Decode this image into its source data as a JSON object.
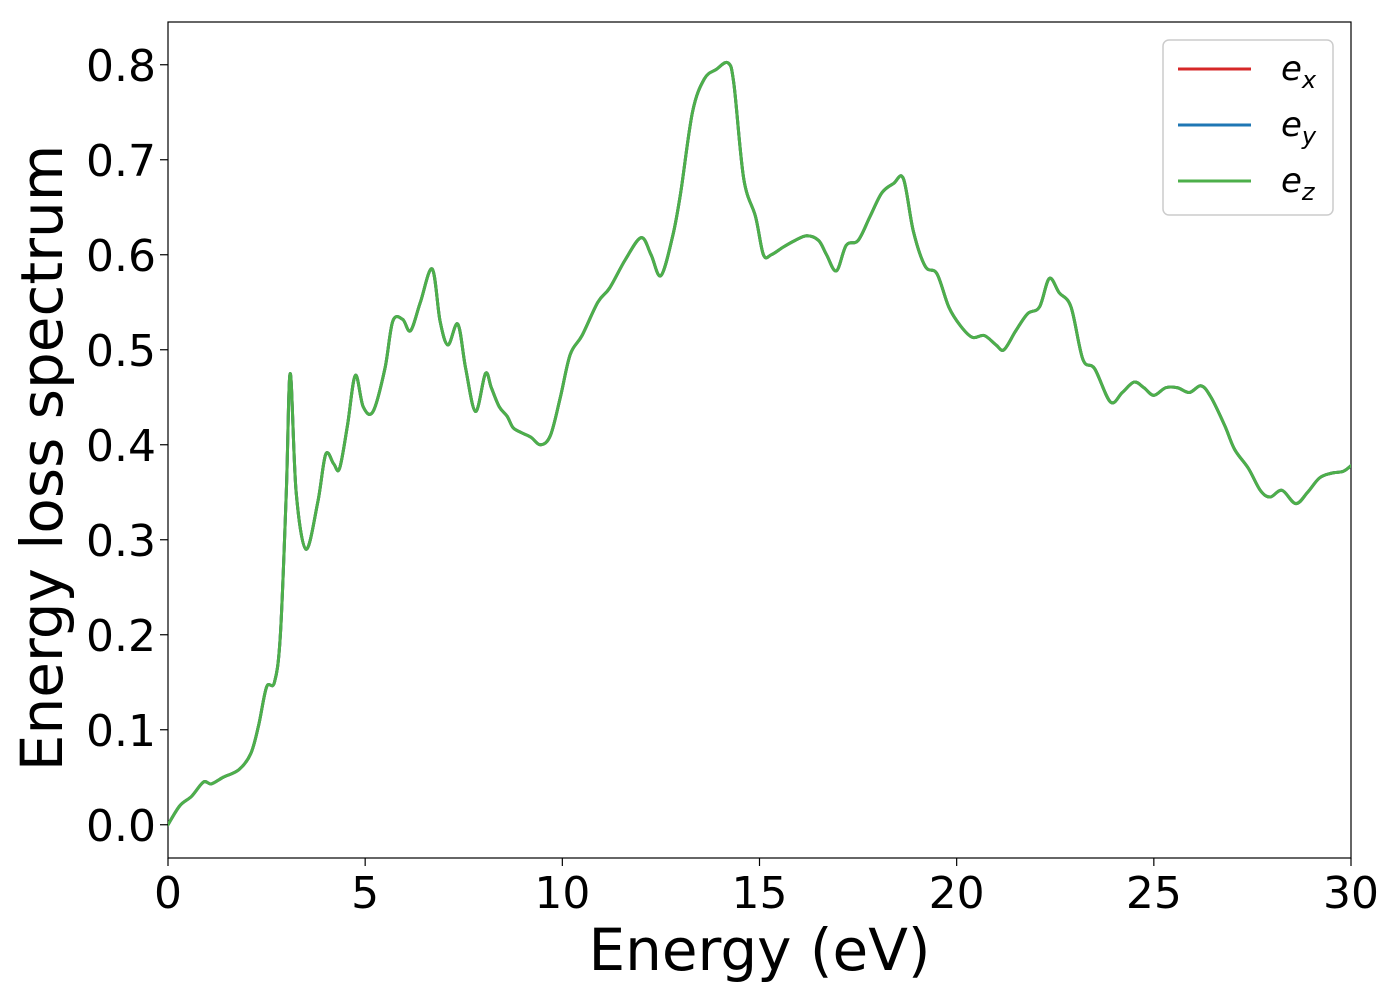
{
  "chart_data": {
    "type": "line",
    "xlabel": "Energy (eV)",
    "ylabel": "Energy loss spectrum",
    "xlim": [
      0,
      30
    ],
    "ylim": [
      -0.035,
      0.845
    ],
    "xticks": [
      0,
      5,
      10,
      15,
      20,
      25,
      30
    ],
    "xtick_labels": [
      "0",
      "5",
      "10",
      "15",
      "20",
      "25",
      "30"
    ],
    "yticks": [
      0.0,
      0.1,
      0.2,
      0.3,
      0.4,
      0.5,
      0.6,
      0.7,
      0.8
    ],
    "ytick_labels": [
      "0.0",
      "0.1",
      "0.2",
      "0.3",
      "0.4",
      "0.5",
      "0.6",
      "0.7",
      "0.8"
    ],
    "grid": false,
    "legend_position": "top-right",
    "x": [
      0,
      0.3,
      0.6,
      0.9,
      1.1,
      1.4,
      1.8,
      2.1,
      2.3,
      2.5,
      2.7,
      2.85,
      3.0,
      3.1,
      3.25,
      3.5,
      3.8,
      4.0,
      4.2,
      4.35,
      4.55,
      4.75,
      4.95,
      5.2,
      5.5,
      5.7,
      5.95,
      6.15,
      6.4,
      6.7,
      6.9,
      7.1,
      7.35,
      7.55,
      7.8,
      8.05,
      8.2,
      8.4,
      8.6,
      8.75,
      8.95,
      9.2,
      9.45,
      9.7,
      9.95,
      10.2,
      10.5,
      10.9,
      11.2,
      11.6,
      12.0,
      12.25,
      12.5,
      12.8,
      13.0,
      13.3,
      13.6,
      13.9,
      14.2,
      14.35,
      14.6,
      14.9,
      15.1,
      15.3,
      15.6,
      15.9,
      16.2,
      16.5,
      16.7,
      16.95,
      17.2,
      17.5,
      17.8,
      18.1,
      18.4,
      18.65,
      18.9,
      19.2,
      19.5,
      19.8,
      20.1,
      20.4,
      20.7,
      21.0,
      21.2,
      21.5,
      21.8,
      22.1,
      22.35,
      22.6,
      22.9,
      23.2,
      23.5,
      23.9,
      24.2,
      24.5,
      24.75,
      25.0,
      25.3,
      25.6,
      25.9,
      26.2,
      26.45,
      26.8,
      27.05,
      27.4,
      27.7,
      27.95,
      28.25,
      28.6,
      28.9,
      29.2,
      29.5,
      29.8,
      30.0
    ],
    "series": [
      {
        "name": "e_x",
        "color": "#d62728",
        "values": [
          0.0,
          0.02,
          0.03,
          0.045,
          0.043,
          0.05,
          0.058,
          0.075,
          0.105,
          0.145,
          0.15,
          0.2,
          0.35,
          0.475,
          0.35,
          0.29,
          0.34,
          0.39,
          0.38,
          0.375,
          0.42,
          0.473,
          0.44,
          0.435,
          0.48,
          0.53,
          0.532,
          0.52,
          0.55,
          0.585,
          0.53,
          0.505,
          0.527,
          0.48,
          0.435,
          0.475,
          0.46,
          0.44,
          0.43,
          0.418,
          0.413,
          0.408,
          0.4,
          0.41,
          0.45,
          0.495,
          0.515,
          0.55,
          0.565,
          0.595,
          0.618,
          0.6,
          0.578,
          0.62,
          0.665,
          0.75,
          0.785,
          0.795,
          0.802,
          0.78,
          0.68,
          0.64,
          0.6,
          0.6,
          0.608,
          0.615,
          0.62,
          0.615,
          0.6,
          0.583,
          0.61,
          0.615,
          0.64,
          0.665,
          0.675,
          0.68,
          0.625,
          0.588,
          0.58,
          0.545,
          0.525,
          0.513,
          0.515,
          0.505,
          0.5,
          0.52,
          0.538,
          0.545,
          0.575,
          0.56,
          0.545,
          0.49,
          0.48,
          0.445,
          0.455,
          0.466,
          0.46,
          0.452,
          0.46,
          0.46,
          0.455,
          0.462,
          0.45,
          0.42,
          0.395,
          0.375,
          0.352,
          0.345,
          0.352,
          0.338,
          0.35,
          0.365,
          0.37,
          0.372,
          0.378
        ]
      },
      {
        "name": "e_y",
        "color": "#1f77b4",
        "values": [
          0.0,
          0.02,
          0.03,
          0.045,
          0.043,
          0.05,
          0.058,
          0.075,
          0.105,
          0.145,
          0.15,
          0.2,
          0.35,
          0.475,
          0.35,
          0.29,
          0.34,
          0.39,
          0.38,
          0.375,
          0.42,
          0.473,
          0.44,
          0.435,
          0.48,
          0.53,
          0.532,
          0.52,
          0.55,
          0.585,
          0.53,
          0.505,
          0.527,
          0.48,
          0.435,
          0.475,
          0.46,
          0.44,
          0.43,
          0.418,
          0.413,
          0.408,
          0.4,
          0.41,
          0.45,
          0.495,
          0.515,
          0.55,
          0.565,
          0.595,
          0.618,
          0.6,
          0.578,
          0.62,
          0.665,
          0.75,
          0.785,
          0.795,
          0.802,
          0.78,
          0.68,
          0.64,
          0.6,
          0.6,
          0.608,
          0.615,
          0.62,
          0.615,
          0.6,
          0.583,
          0.61,
          0.615,
          0.64,
          0.665,
          0.675,
          0.68,
          0.625,
          0.588,
          0.58,
          0.545,
          0.525,
          0.513,
          0.515,
          0.505,
          0.5,
          0.52,
          0.538,
          0.545,
          0.575,
          0.56,
          0.545,
          0.49,
          0.48,
          0.445,
          0.455,
          0.466,
          0.46,
          0.452,
          0.46,
          0.46,
          0.455,
          0.462,
          0.45,
          0.42,
          0.395,
          0.375,
          0.352,
          0.345,
          0.352,
          0.338,
          0.35,
          0.365,
          0.37,
          0.372,
          0.378
        ]
      },
      {
        "name": "e_z",
        "color": "#4daf4a",
        "values": [
          0.0,
          0.02,
          0.03,
          0.045,
          0.043,
          0.05,
          0.058,
          0.075,
          0.105,
          0.145,
          0.15,
          0.2,
          0.35,
          0.475,
          0.35,
          0.29,
          0.34,
          0.39,
          0.38,
          0.375,
          0.42,
          0.473,
          0.44,
          0.435,
          0.48,
          0.53,
          0.532,
          0.52,
          0.55,
          0.585,
          0.53,
          0.505,
          0.527,
          0.48,
          0.435,
          0.475,
          0.46,
          0.44,
          0.43,
          0.418,
          0.413,
          0.408,
          0.4,
          0.41,
          0.45,
          0.495,
          0.515,
          0.55,
          0.565,
          0.595,
          0.618,
          0.6,
          0.578,
          0.62,
          0.665,
          0.75,
          0.785,
          0.795,
          0.802,
          0.78,
          0.68,
          0.64,
          0.6,
          0.6,
          0.608,
          0.615,
          0.62,
          0.615,
          0.6,
          0.583,
          0.61,
          0.615,
          0.64,
          0.665,
          0.675,
          0.68,
          0.625,
          0.588,
          0.58,
          0.545,
          0.525,
          0.513,
          0.515,
          0.505,
          0.5,
          0.52,
          0.538,
          0.545,
          0.575,
          0.56,
          0.545,
          0.49,
          0.48,
          0.445,
          0.455,
          0.466,
          0.46,
          0.452,
          0.46,
          0.46,
          0.455,
          0.462,
          0.45,
          0.42,
          0.395,
          0.375,
          0.352,
          0.345,
          0.352,
          0.338,
          0.35,
          0.365,
          0.37,
          0.372,
          0.378
        ]
      }
    ],
    "legend": [
      {
        "base": "e",
        "sub": "x",
        "color": "#d62728"
      },
      {
        "base": "e",
        "sub": "y",
        "color": "#1f77b4"
      },
      {
        "base": "e",
        "sub": "z",
        "color": "#4daf4a"
      }
    ]
  }
}
